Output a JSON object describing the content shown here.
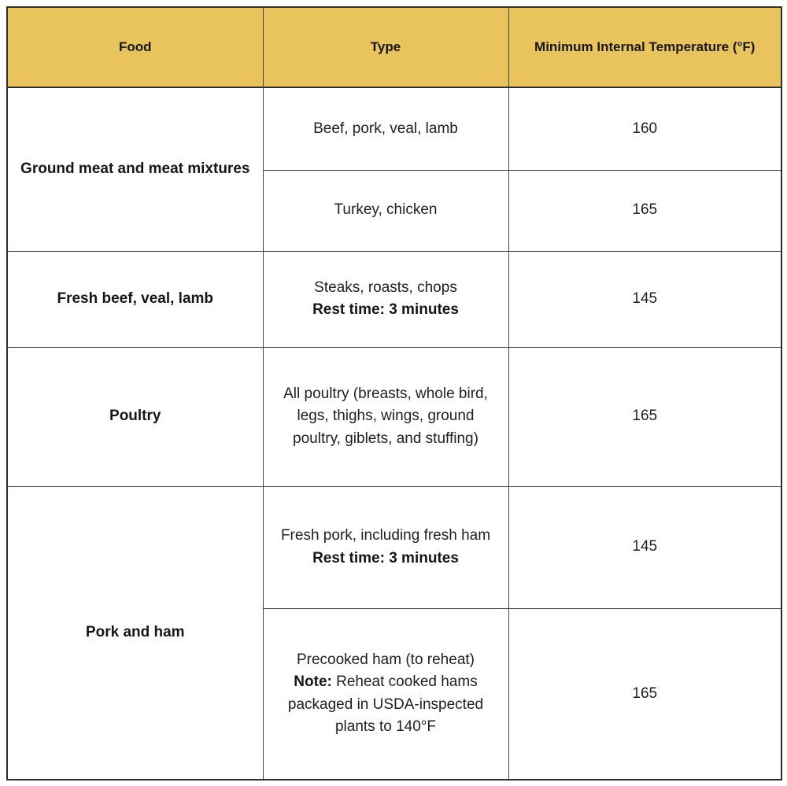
{
  "table": {
    "headers": [
      "Food",
      "Type",
      "Minimum Internal Temperature (°F)"
    ],
    "rows": [
      {
        "food": "Ground meat and meat mixtures",
        "subs": [
          {
            "type": "Beef, pork, veal, lamb",
            "temp": "160"
          },
          {
            "type": "Turkey, chicken",
            "temp": "165"
          }
        ]
      },
      {
        "food": "Fresh beef, veal, lamb",
        "subs": [
          {
            "type": "Steaks, roasts, chops",
            "type_bold": "Rest time: 3 minutes",
            "temp": "145"
          }
        ]
      },
      {
        "food": "Poultry",
        "subs": [
          {
            "type": "All poultry (breasts, whole bird, legs, thighs, wings, ground poultry, giblets, and stuffing)",
            "temp": "165"
          }
        ]
      },
      {
        "food": "Pork and ham",
        "subs": [
          {
            "type": "Fresh pork, including fresh ham",
            "type_bold": "Rest time: 3 minutes",
            "temp": "145"
          },
          {
            "type": "Precooked ham (to reheat)",
            "note_bold": "Note:",
            "note_rest": " Reheat cooked hams packaged in USDA-inspected plants to 140°F",
            "temp": "165"
          }
        ]
      }
    ],
    "colors": {
      "header_bg": "#e9c45c",
      "outer_border": "#2e2e2e",
      "inner_border": "#444444",
      "text": "#1f1f1f"
    }
  }
}
